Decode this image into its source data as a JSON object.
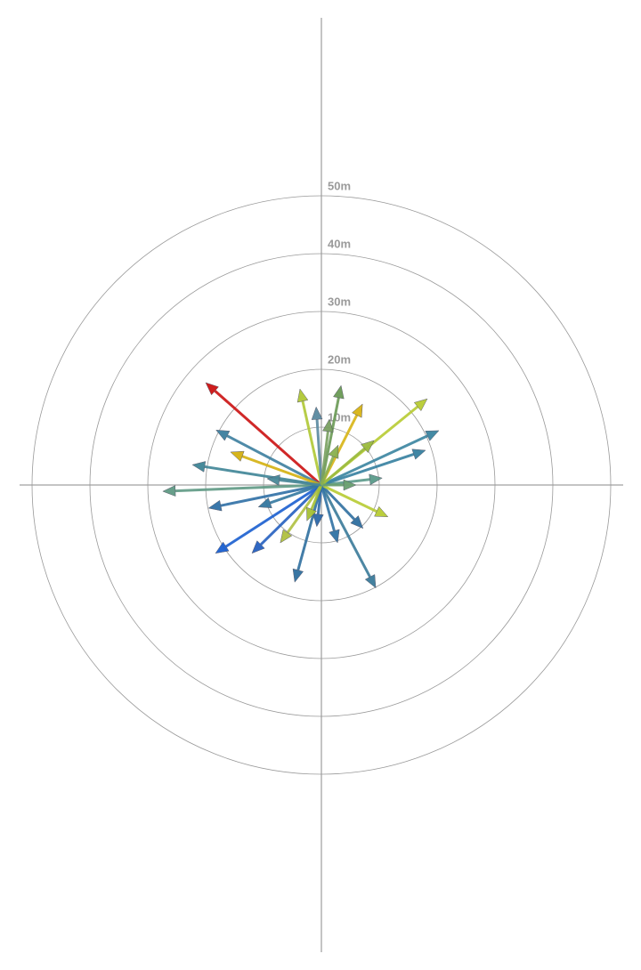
{
  "chart_data": {
    "type": "vector",
    "rlim": [
      0,
      50
    ],
    "rticks": [
      {
        "value": 10,
        "label": "10m"
      },
      {
        "value": 20,
        "label": "20m"
      },
      {
        "value": 30,
        "label": "30m"
      },
      {
        "value": 40,
        "label": "40m"
      },
      {
        "value": 50,
        "label": "50m"
      }
    ],
    "vectors": {
      "x": [
        -20,
        -27.4,
        -22.3,
        -18.2,
        -15.7,
        -19.5,
        -18.3,
        -12,
        -4.6,
        -0.8,
        9.4,
        7.2,
        11.5,
        10.5,
        18,
        20.3,
        18.3,
        7.1,
        3.4,
        -3.7,
        -0.9,
        1.4,
        9.1,
        -10.9,
        -7.1,
        2.8,
        -2.5,
        6,
        -9.4,
        2.9
      ],
      "y": [
        17.7,
        -1.1,
        3.5,
        9.5,
        5.7,
        -4,
        -11.8,
        -11.8,
        -16.8,
        -7.2,
        -17.8,
        -7.5,
        -5.5,
        1.2,
        6,
        9.4,
        14.9,
        14,
        17.2,
        16.6,
        13.5,
        11.4,
        7.7,
        -3.8,
        -10,
        -10,
        -6.2,
        0,
        1.1,
        6.9
      ],
      "colors": [
        "#cc1111",
        "#5f9a84",
        "#3f8596",
        "#3d7f9f",
        "#d4b10f",
        "#2f70a6",
        "#1a5fd0",
        "#2560c0",
        "#2f6f9f",
        "#2c68a8",
        "#3a7b9a",
        "#2f6fa0",
        "#b8cc33",
        "#5a9a8a",
        "#3680a0",
        "#3a84a0",
        "#b8cc33",
        "#d8b415",
        "#6a9a55",
        "#b0c835",
        "#5a8aa0",
        "#7aa060",
        "#9bbb40",
        "#3478a0",
        "#b0c040",
        "#3072a4",
        "#a6c034",
        "#6aa070",
        "#4a8898",
        "#8ab050"
      ]
    }
  }
}
